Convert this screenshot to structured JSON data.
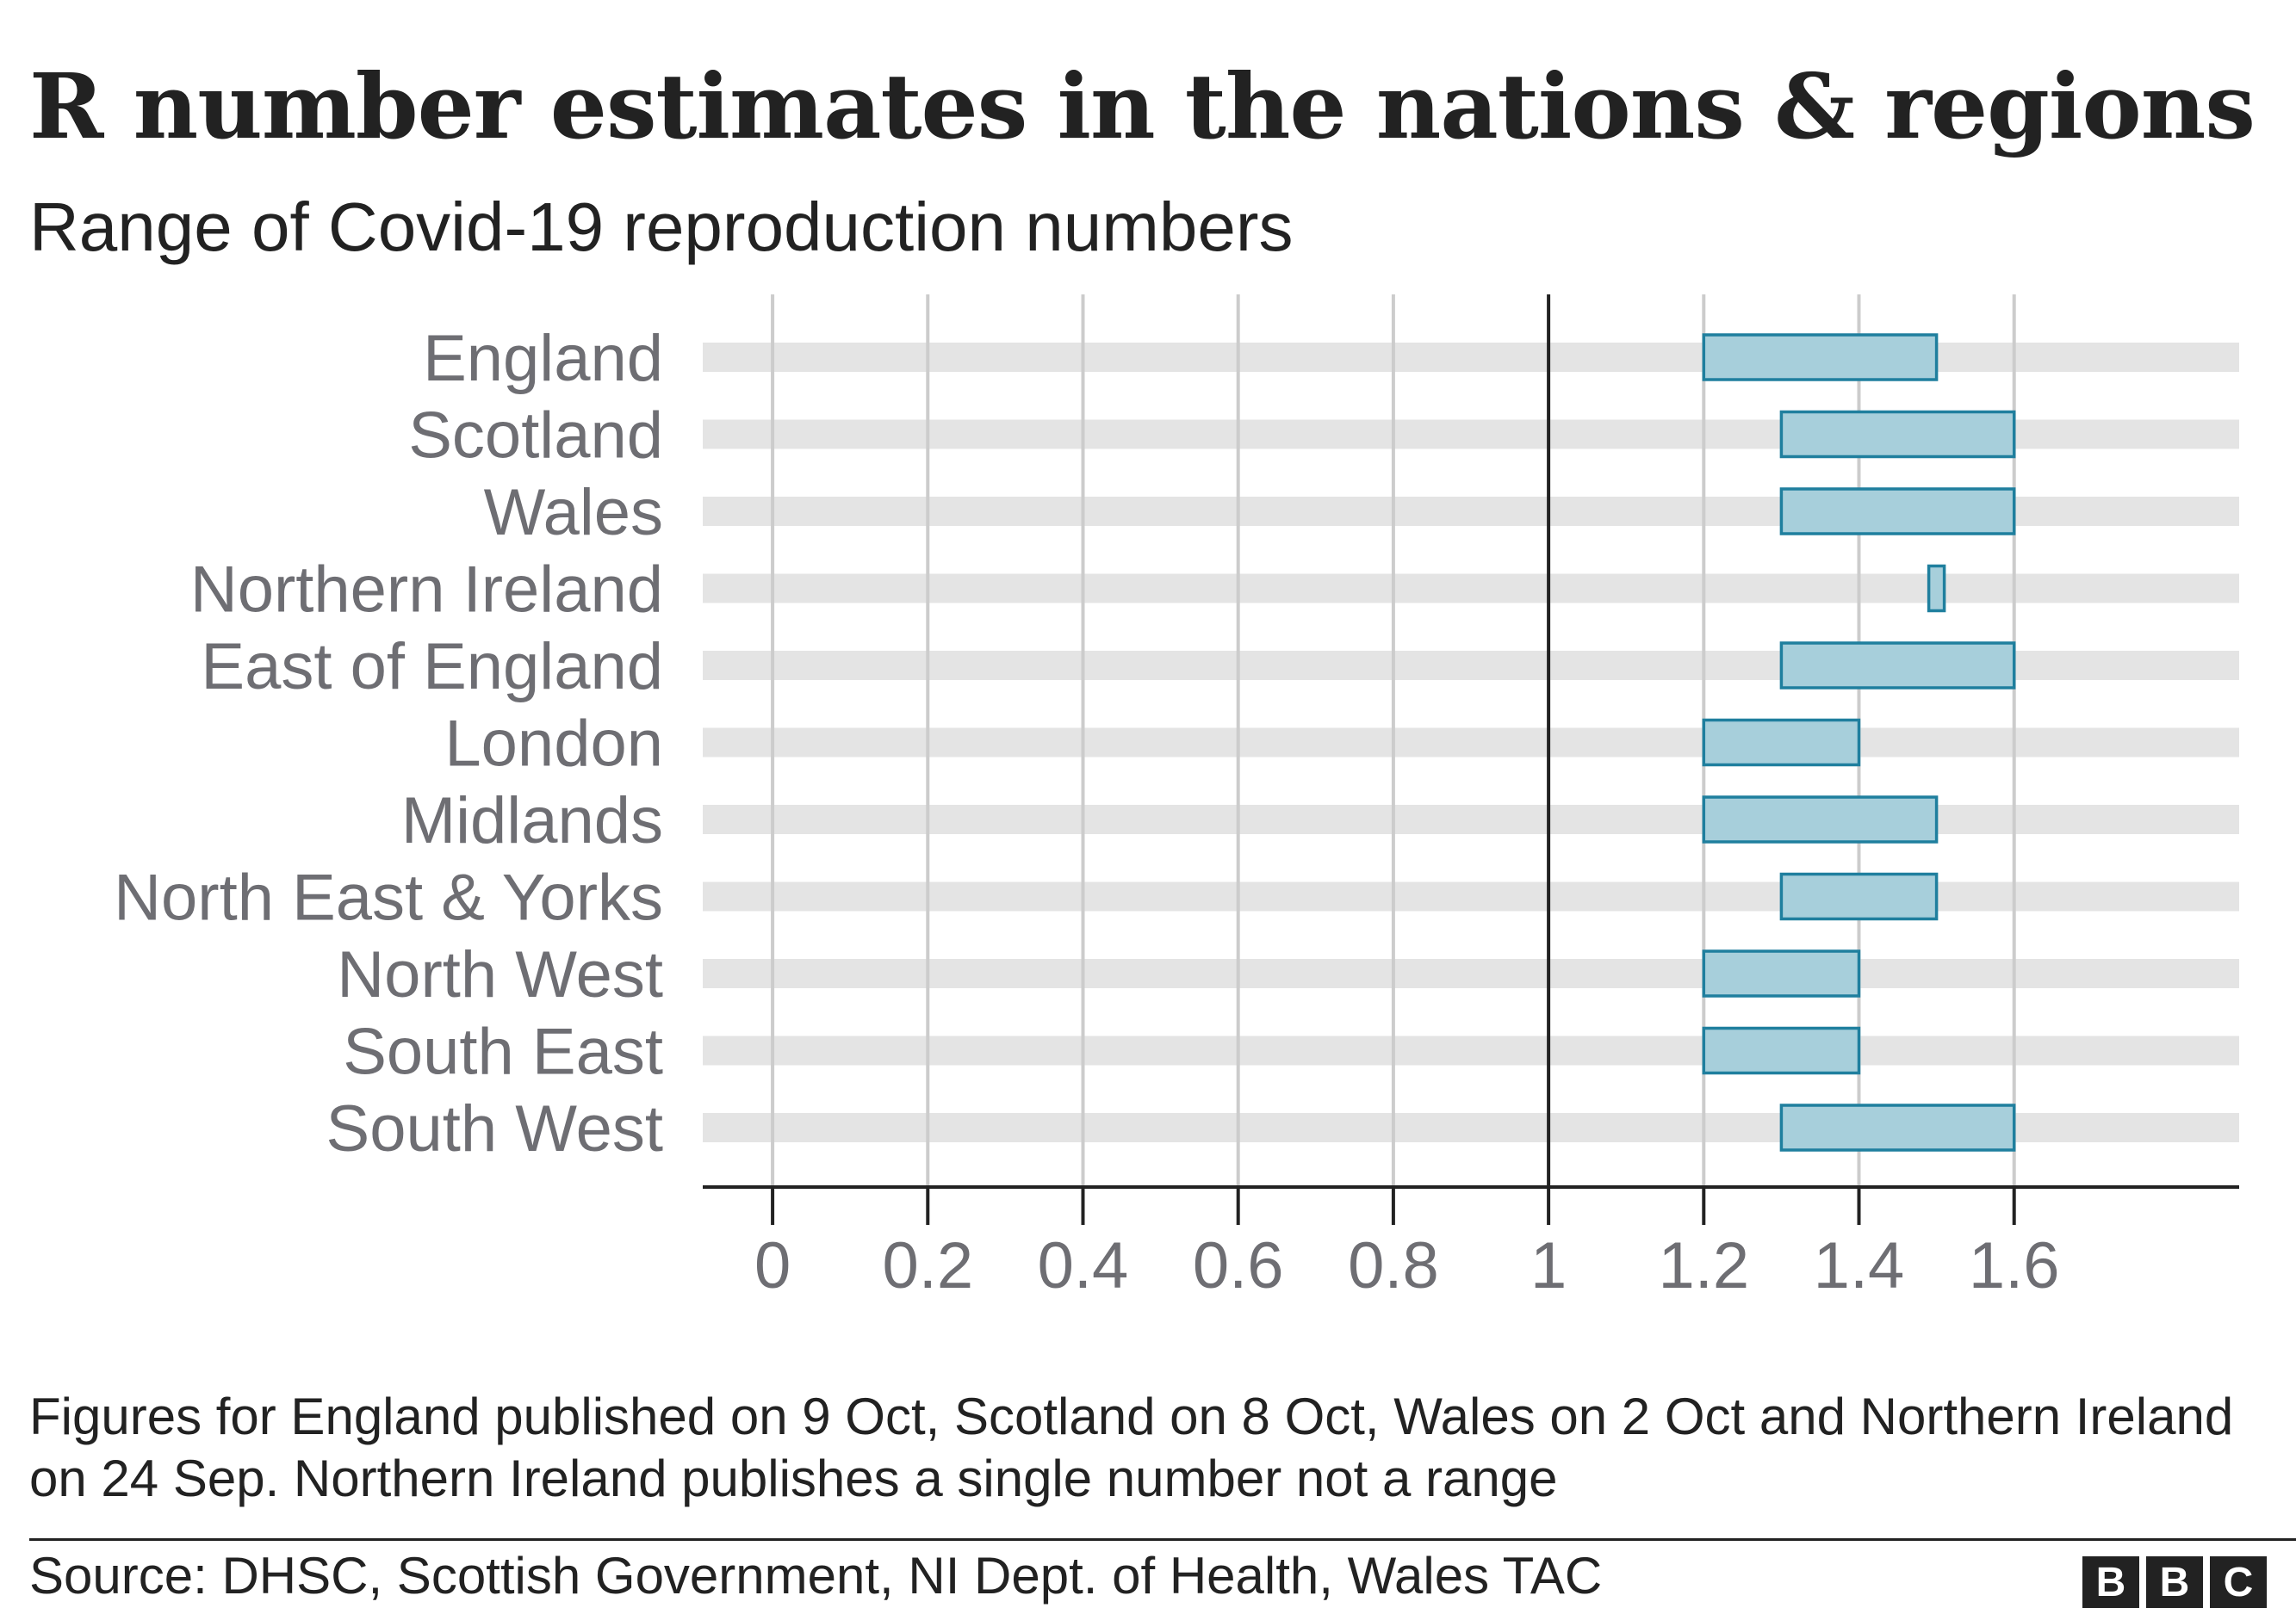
{
  "title": "R number estimates in the nations & regions",
  "subtitle": "Range of Covid-19 reproduction numbers",
  "note": "Figures for England published on 9 Oct, Scotland on 8 Oct, Wales on 2 Oct and Northern Ireland on 24 Sep. Northern Ireland publishes a single number not a range",
  "source": "Source: DHSC, Scottish Government, NI Dept. of Health, Wales TAC",
  "logo": [
    "B",
    "B",
    "C"
  ],
  "chart_data": {
    "type": "bar",
    "orientation": "horizontal-range",
    "categories": [
      "England",
      "Scotland",
      "Wales",
      "Northern Ireland",
      "East of England",
      "London",
      "Midlands",
      "North East & Yorks",
      "North West",
      "South East",
      "South West"
    ],
    "ranges": [
      [
        1.2,
        1.5
      ],
      [
        1.3,
        1.6
      ],
      [
        1.3,
        1.6
      ],
      [
        1.5,
        1.5
      ],
      [
        1.3,
        1.6
      ],
      [
        1.2,
        1.4
      ],
      [
        1.2,
        1.5
      ],
      [
        1.3,
        1.5
      ],
      [
        1.2,
        1.4
      ],
      [
        1.2,
        1.4
      ],
      [
        1.3,
        1.6
      ]
    ],
    "xticks": [
      0,
      0.2,
      0.4,
      0.6,
      0.8,
      1,
      1.2,
      1.4,
      1.6
    ],
    "xtick_labels": [
      "0",
      "0.2",
      "0.4",
      "0.6",
      "0.8",
      "1",
      "1.2",
      "1.4",
      "1.6"
    ],
    "xlim": [
      -0.09,
      1.89
    ],
    "reference_line": 1,
    "grid": true,
    "colors": {
      "bar_fill": "#a7cfdb",
      "bar_stroke": "#1f7f9e",
      "track": "#e4e4e4",
      "grid": "#cccccc",
      "axis": "#222222",
      "label": "#6e6e73"
    }
  }
}
